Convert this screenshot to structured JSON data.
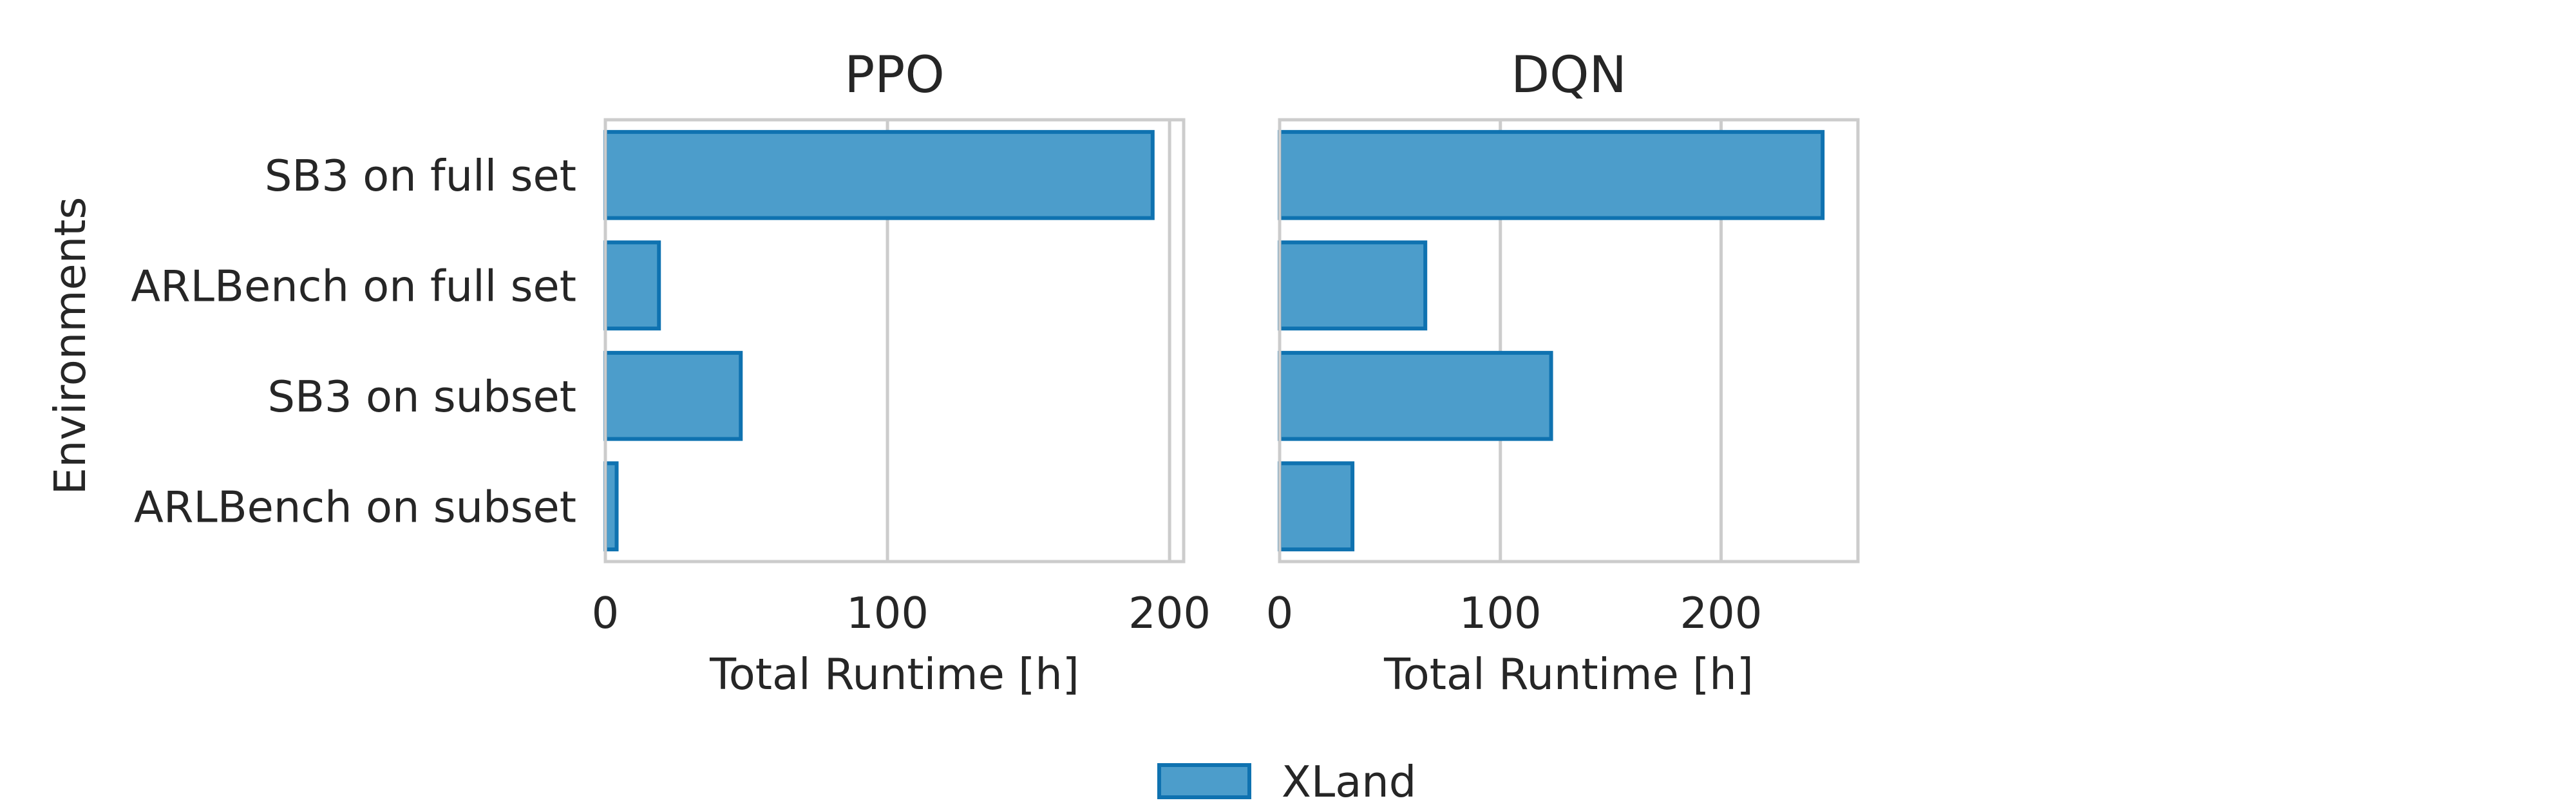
{
  "chart_data": {
    "type": "bar",
    "orientation": "horizontal",
    "ylabel": "Environments",
    "categories": [
      "SB3 on full set",
      "ARLBench on full set",
      "SB3 on subset",
      "ARLBench on subset"
    ],
    "legend": {
      "entries": [
        "XLand"
      ],
      "placement": "bottom-center"
    },
    "grid": true,
    "colors": {
      "bar_fill": "#4c9dcb",
      "bar_edge": "#0f72b0",
      "grid": "#cccccc",
      "text": "#262626"
    },
    "panels": [
      {
        "title": "PPO",
        "xlabel": "Total Runtime [h]",
        "xlim": [
          0,
          205
        ],
        "xticks": [
          0,
          100,
          200
        ],
        "series": [
          {
            "name": "XLand",
            "values": [
              194,
              19,
              48,
              4
            ]
          }
        ]
      },
      {
        "title": "DQN",
        "xlabel": "Total Runtime [h]",
        "xlim": [
          0,
          262
        ],
        "xticks": [
          0,
          100,
          200
        ],
        "series": [
          {
            "name": "XLand",
            "values": [
              246,
              66,
              123,
              33
            ]
          }
        ]
      }
    ]
  }
}
